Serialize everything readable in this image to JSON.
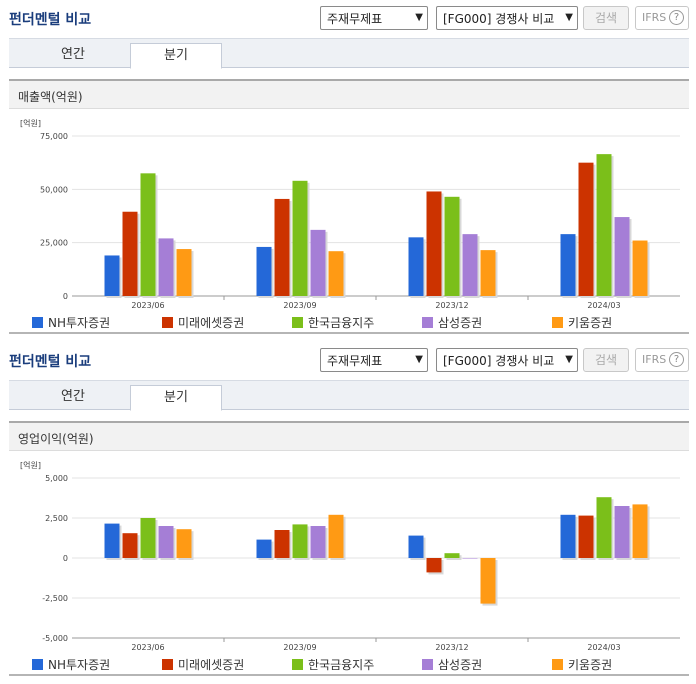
{
  "header": {
    "title": "펀더멘털 비교",
    "select_statement": "주재무제표",
    "select_compare": "[FG000] 경쟁사 비교",
    "search_label": "검색",
    "ifrs_label": "IFRS",
    "help_glyph": "?"
  },
  "tabs": [
    {
      "label": "연간",
      "active": false
    },
    {
      "label": "분기",
      "active": true
    }
  ],
  "colors": {
    "NH투자증권": "#2468d8",
    "미래에셋증권": "#cc3300",
    "한국금융지주": "#7bbf1a",
    "삼성증권": "#a57ed6",
    "키움증권": "#ff9a14"
  },
  "chart_data": [
    {
      "type": "bar",
      "title": "매출액(억원)",
      "unit_label": "[억원]",
      "categories": [
        "2023/06",
        "2023/09",
        "2023/12",
        "2024/03"
      ],
      "ylim": [
        0,
        75000
      ],
      "yticks": [
        0,
        25000,
        50000,
        75000
      ],
      "ytick_labels": [
        "0",
        "25,000",
        "50,000",
        "75,000"
      ],
      "grid": true,
      "legend_position": "bottom",
      "series": [
        {
          "name": "NH투자증권",
          "values": [
            19000,
            23000,
            27500,
            29000
          ]
        },
        {
          "name": "미래에셋증권",
          "values": [
            39500,
            45500,
            49000,
            62500
          ]
        },
        {
          "name": "한국금융지주",
          "values": [
            57500,
            54000,
            46500,
            66500
          ]
        },
        {
          "name": "삼성증권",
          "values": [
            27000,
            31000,
            29000,
            37000
          ]
        },
        {
          "name": "키움증권",
          "values": [
            22000,
            21000,
            21500,
            26000
          ]
        }
      ]
    },
    {
      "type": "bar",
      "title": "영업이익(억원)",
      "unit_label": "[억원]",
      "categories": [
        "2023/06",
        "2023/09",
        "2023/12",
        "2024/03"
      ],
      "ylim": [
        -5000,
        5000
      ],
      "yticks": [
        -5000,
        -2500,
        0,
        2500,
        5000
      ],
      "ytick_labels": [
        "-5,000",
        "-2,500",
        "0",
        "2,500",
        "5,000"
      ],
      "grid": true,
      "legend_position": "bottom",
      "series": [
        {
          "name": "NH투자증권",
          "values": [
            2150,
            1150,
            1400,
            2700
          ]
        },
        {
          "name": "미래에셋증권",
          "values": [
            1550,
            1750,
            -900,
            2650
          ]
        },
        {
          "name": "한국금융지주",
          "values": [
            2500,
            2100,
            300,
            3800
          ]
        },
        {
          "name": "삼성증권",
          "values": [
            2000,
            2000,
            0,
            3250
          ]
        },
        {
          "name": "키움증권",
          "values": [
            1800,
            2700,
            -2850,
            3350
          ]
        }
      ]
    }
  ]
}
